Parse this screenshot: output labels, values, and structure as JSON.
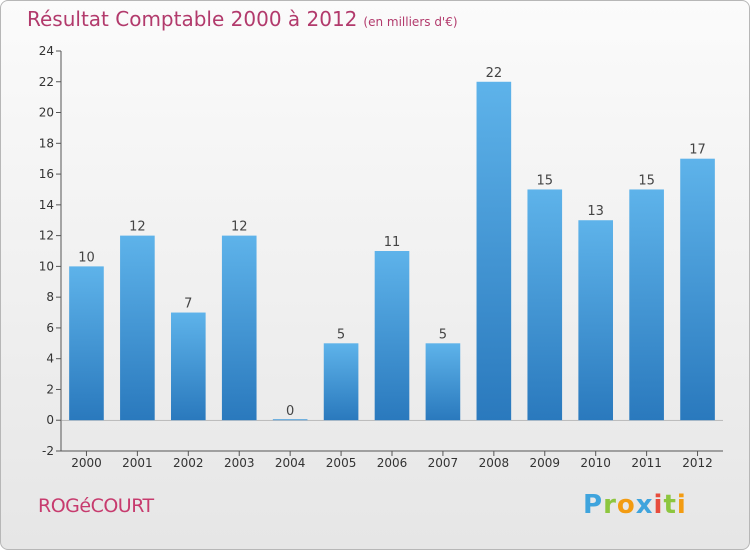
{
  "title": "Résultat Comptable 2000 à 2012",
  "unit_note": "(en milliers d'€)",
  "commune": "ROGéCOURT",
  "logo": {
    "text": "Proxiti",
    "letters": [
      {
        "ch": "P",
        "color": "#3fa4dd"
      },
      {
        "ch": "r",
        "color": "#8dc63f"
      },
      {
        "ch": "o",
        "color": "#f39c12"
      },
      {
        "ch": "x",
        "color": "#3fa4dd"
      },
      {
        "ch": "i",
        "color": "#e74c3c"
      },
      {
        "ch": "t",
        "color": "#8dc63f"
      },
      {
        "ch": "i",
        "color": "#f39c12"
      }
    ]
  },
  "colors": {
    "bar_light": "#5eb3ea",
    "bar_dark": "#2a79bd",
    "title": "#b23a6c"
  },
  "chart_data": {
    "type": "bar",
    "title": "Résultat Comptable 2000 à 2012",
    "xlabel": "",
    "ylabel": "",
    "categories": [
      "2000",
      "2001",
      "2002",
      "2003",
      "2004",
      "2005",
      "2006",
      "2007",
      "2008",
      "2009",
      "2010",
      "2011",
      "2012"
    ],
    "values": [
      10,
      12,
      7,
      12,
      0,
      5,
      11,
      5,
      22,
      15,
      13,
      15,
      17
    ],
    "data_labels": [
      "10",
      "12",
      "7",
      "12",
      "0",
      "5",
      "11",
      "5",
      "22",
      "15",
      "13",
      "15",
      "17"
    ],
    "ylim": [
      -2,
      24
    ],
    "yticks": [
      -2,
      0,
      2,
      4,
      6,
      8,
      10,
      12,
      14,
      16,
      18,
      20,
      22,
      24
    ],
    "grid": false,
    "legend": "none"
  }
}
